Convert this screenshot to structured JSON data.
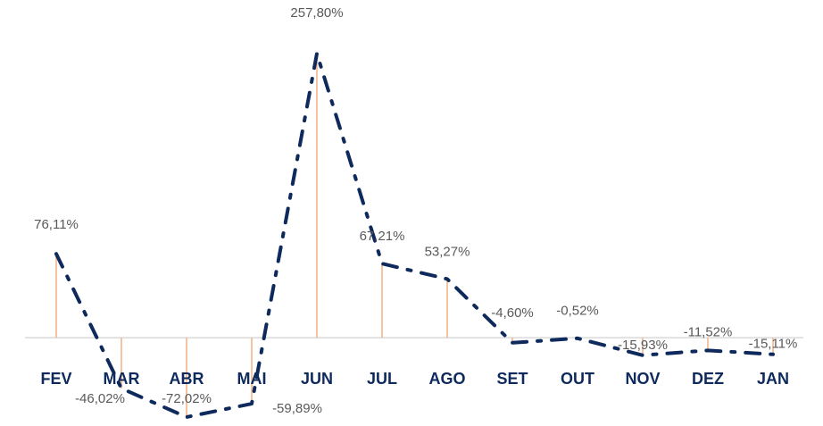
{
  "chart_data": {
    "type": "line",
    "categories": [
      "FEV",
      "MAR",
      "ABR",
      "MAI",
      "JUN",
      "JUL",
      "AGO",
      "SET",
      "OUT",
      "NOV",
      "DEZ",
      "JAN"
    ],
    "values": [
      76.11,
      -46.02,
      -72.02,
      -59.89,
      257.8,
      67.21,
      53.27,
      -4.6,
      -0.52,
      -15.93,
      -11.52,
      -15.11
    ],
    "value_labels": [
      "76,11%",
      "-46,02%",
      "-72,02%",
      "-59,89%",
      "257,80%",
      "67,21%",
      "53,27%",
      "-4,60%",
      "-0,52%",
      "-15,93%",
      "-11,52%",
      "-15,11%"
    ],
    "color": "#0e2a5c",
    "drop_line_color": "#f4b183"
  }
}
